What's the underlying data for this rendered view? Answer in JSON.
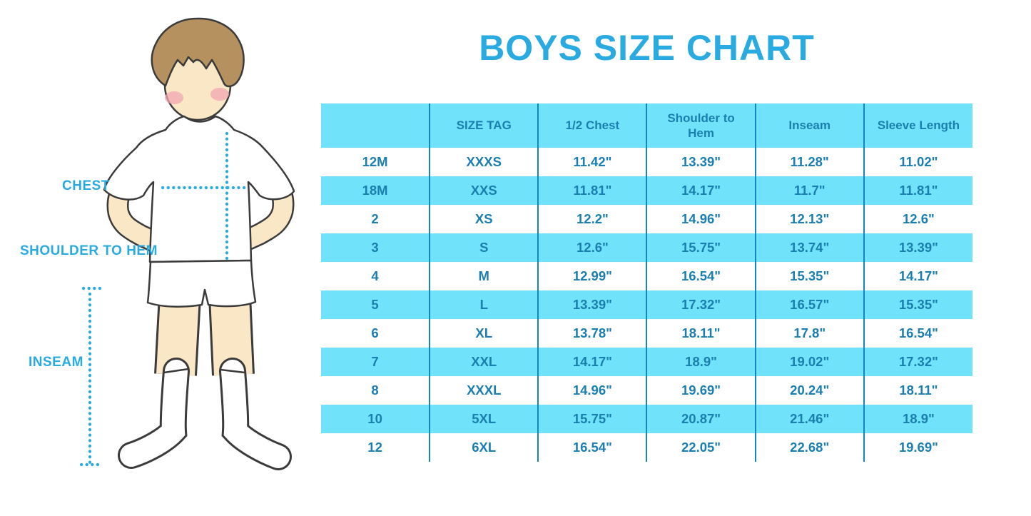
{
  "title": "BOYS SIZE CHART",
  "colors": {
    "accent_blue": "#29ABE2",
    "table_fill_cyan": "#70E3FA",
    "divider_blue": "#1287BD",
    "table_text_blue": "#1B7EB0"
  },
  "figure": {
    "illustration": "boy-standing-front-in-tshirt-shorts-and-socks",
    "labels": {
      "chest": "CHEST",
      "shoulder_to_hem": "SHOULDER TO HEM",
      "inseam": "INSEAM"
    }
  },
  "chart_data": {
    "type": "table",
    "title": "BOYS SIZE CHART",
    "columns": [
      "",
      "SIZE TAG",
      "1/2 Chest",
      "Shoulder to Hem",
      "Inseam",
      "Sleeve Length"
    ],
    "rows": [
      [
        "12M",
        "XXXS",
        "11.42\"",
        "13.39\"",
        "11.28\"",
        "11.02\""
      ],
      [
        "18M",
        "XXS",
        "11.81\"",
        "14.17\"",
        "11.7\"",
        "11.81\""
      ],
      [
        "2",
        "XS",
        "12.2\"",
        "14.96\"",
        "12.13\"",
        "12.6\""
      ],
      [
        "3",
        "S",
        "12.6\"",
        "15.75\"",
        "13.74\"",
        "13.39\""
      ],
      [
        "4",
        "M",
        "12.99\"",
        "16.54\"",
        "15.35\"",
        "14.17\""
      ],
      [
        "5",
        "L",
        "13.39\"",
        "17.32\"",
        "16.57\"",
        "15.35\""
      ],
      [
        "6",
        "XL",
        "13.78\"",
        "18.11\"",
        "17.8\"",
        "16.54\""
      ],
      [
        "7",
        "XXL",
        "14.17\"",
        "18.9\"",
        "19.02\"",
        "17.32\""
      ],
      [
        "8",
        "XXXL",
        "14.96\"",
        "19.69\"",
        "20.24\"",
        "18.11\""
      ],
      [
        "10",
        "5XL",
        "15.75\"",
        "20.87\"",
        "21.46\"",
        "18.9\""
      ],
      [
        "12",
        "6XL",
        "16.54\"",
        "22.05\"",
        "22.68\"",
        "19.69\""
      ]
    ],
    "row_striping": "white/cyan alternating, header cyan",
    "legend_position": "none",
    "grid": "vertical column dividers only"
  }
}
